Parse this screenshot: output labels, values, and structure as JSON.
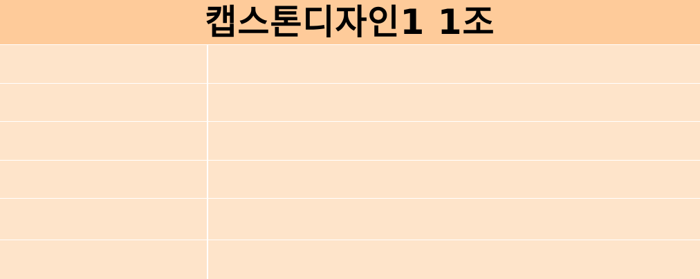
{
  "header": {
    "title": "캡스톤디자인1 1조"
  },
  "rows": [
    {
      "left": "",
      "right": ""
    },
    {
      "left": "",
      "right": ""
    },
    {
      "left": "",
      "right": ""
    },
    {
      "left": "",
      "right": ""
    },
    {
      "left": "",
      "right": ""
    },
    {
      "left": "",
      "right": ""
    }
  ],
  "colors": {
    "header_bg": "#fecb9a",
    "body_bg": "#fee4ca",
    "grid_line": "#ffffff"
  }
}
